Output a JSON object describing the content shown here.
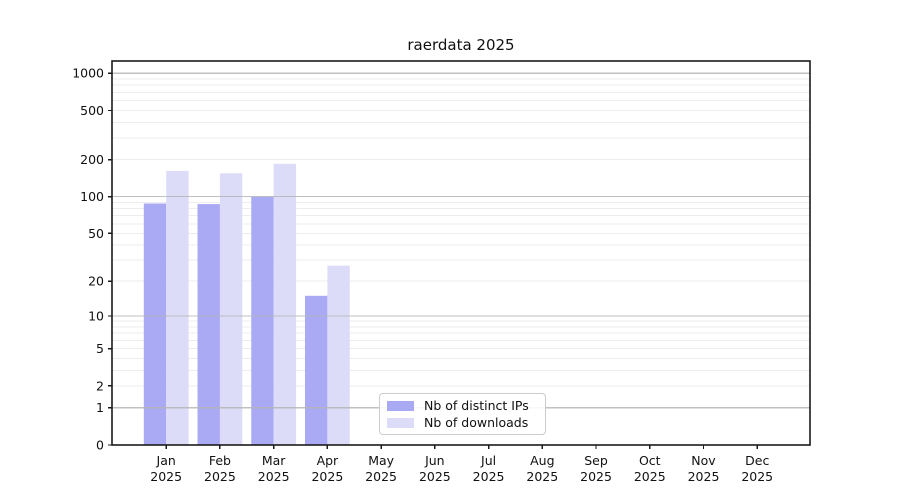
{
  "figure": {
    "background": "#ffffff",
    "axis_color": "#1a1a1a",
    "grid_minor_color": "#ededed",
    "grid_major_color": "#b5b5b5",
    "text_color": "#111111"
  },
  "chart_data": {
    "type": "bar",
    "title": "raerdata 2025",
    "categories": [
      "Jan",
      "Feb",
      "Mar",
      "Apr",
      "May",
      "Jun",
      "Jul",
      "Aug",
      "Sep",
      "Oct",
      "Nov",
      "Dec"
    ],
    "year_label": "2025",
    "series": [
      {
        "name": "Nb of distinct IPs",
        "color": "#a9a9f4",
        "values": [
          88,
          87,
          100,
          15,
          0,
          0,
          0,
          0,
          0,
          0,
          0,
          0
        ]
      },
      {
        "name": "Nb of downloads",
        "color": "#dcdcf8",
        "values": [
          162,
          155,
          185,
          27,
          0,
          0,
          0,
          0,
          0,
          0,
          0,
          0
        ]
      }
    ],
    "yaxis": {
      "scale": "log1p",
      "tick_values": [
        0,
        1,
        2,
        5,
        10,
        20,
        50,
        100,
        200,
        500,
        1000
      ],
      "major_grid_values": [
        1,
        10,
        100,
        1000
      ],
      "minor_grid_values": [
        2,
        3,
        4,
        5,
        6,
        7,
        8,
        9,
        20,
        30,
        40,
        50,
        60,
        70,
        80,
        90,
        200,
        300,
        400,
        500,
        600,
        700,
        800,
        900
      ],
      "ylim_top": 1280
    },
    "legend_position": "lower center-left inside plot",
    "grid": true
  }
}
